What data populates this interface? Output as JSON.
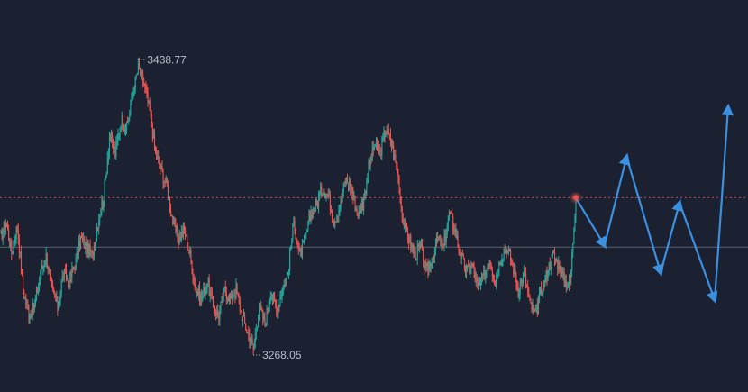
{
  "chart_data": {
    "type": "candlestick",
    "title": "",
    "xlabel": "",
    "ylabel": "",
    "ylim": [
      3240,
      3470
    ],
    "high_label": "3438.77",
    "low_label": "3268.05",
    "current_price_level": 3354,
    "reference_level": 3325,
    "colors": {
      "background": "#1b2130",
      "up": "#26a69a",
      "down": "#ef5350",
      "projection": "#3d8fe0",
      "reference_line": "#5b6270",
      "current_line": "#c04a4f"
    },
    "price_path": [
      3330,
      3340,
      3322,
      3338,
      3300,
      3285,
      3290,
      3310,
      3320,
      3300,
      3290,
      3310,
      3305,
      3315,
      3330,
      3325,
      3320,
      3340,
      3355,
      3390,
      3380,
      3400,
      3395,
      3415,
      3430,
      3420,
      3405,
      3380,
      3370,
      3360,
      3340,
      3330,
      3335,
      3320,
      3300,
      3295,
      3305,
      3290,
      3285,
      3300,
      3295,
      3300,
      3285,
      3275,
      3265,
      3290,
      3280,
      3300,
      3288,
      3300,
      3310,
      3340,
      3320,
      3330,
      3345,
      3350,
      3360,
      3355,
      3340,
      3350,
      3365,
      3360,
      3345,
      3350,
      3370,
      3385,
      3380,
      3395,
      3385,
      3370,
      3340,
      3330,
      3320,
      3325,
      3310,
      3318,
      3330,
      3325,
      3345,
      3335,
      3320,
      3310,
      3315,
      3300,
      3308,
      3318,
      3305,
      3320,
      3325,
      3315,
      3300,
      3310,
      3292,
      3285,
      3300,
      3310,
      3320,
      3315,
      3305,
      3303,
      3354
    ],
    "projection_path": [
      3354,
      3326,
      3378,
      3310,
      3351,
      3294,
      3407
    ]
  }
}
